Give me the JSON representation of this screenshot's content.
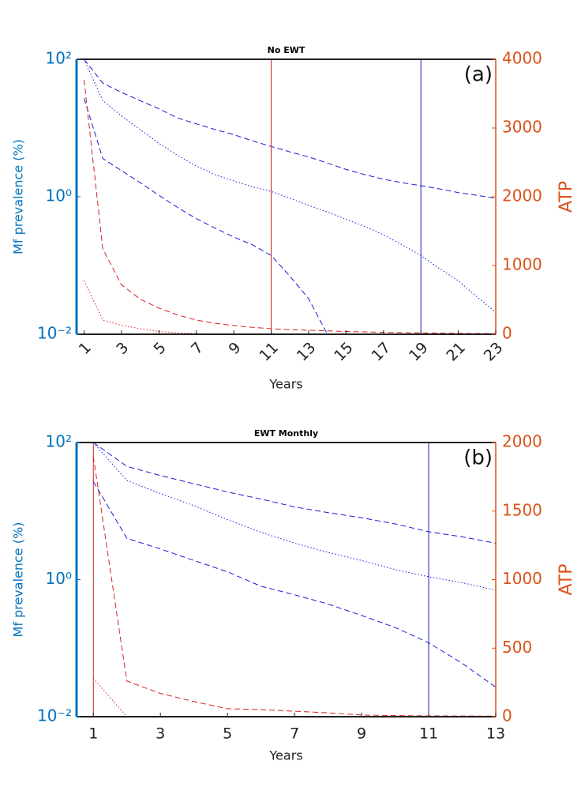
{
  "chart_data": [
    {
      "type": "line",
      "title": "No EWT",
      "panel_label": "(a)",
      "xlabel": "Years",
      "ylabel": "Mf prevalence (%)",
      "y2label": "ATP",
      "x": [
        1,
        2,
        3,
        4,
        5,
        6,
        7,
        8,
        9,
        10,
        11,
        12,
        13,
        14,
        15,
        16,
        17,
        18,
        19,
        20,
        21,
        22,
        23
      ],
      "xlim": [
        0.6,
        23
      ],
      "xticks": [
        1,
        3,
        5,
        7,
        9,
        11,
        13,
        15,
        17,
        19,
        21,
        23
      ],
      "xtick_rotation": 45,
      "ylog": true,
      "ylim": [
        0.01,
        100
      ],
      "yticks": [
        {
          "value": 0.01,
          "label": "10⁻²"
        },
        {
          "value": 1,
          "label": "10⁰"
        },
        {
          "value": 100,
          "label": "10²"
        }
      ],
      "y2lim": [
        0,
        4000
      ],
      "y2ticks": [
        0,
        1000,
        2000,
        3000,
        4000
      ],
      "ycolor": "#0072bd",
      "y2color": "#d95319",
      "series": [
        {
          "color": "#1a1ad6",
          "linestyle": "dashed",
          "values": [
            100,
            45,
            33,
            25,
            19,
            14,
            11.5,
            9.5,
            8,
            6.5,
            5.4,
            4.5,
            3.8,
            3.1,
            2.5,
            2.1,
            1.8,
            1.6,
            1.45,
            1.3,
            1.15,
            1.05,
            0.95
          ]
        },
        {
          "color": "#1a1ad6",
          "linestyle": "dotted",
          "values": [
            100,
            25,
            15,
            9.5,
            6,
            4,
            2.8,
            2.1,
            1.7,
            1.4,
            1.2,
            0.95,
            0.75,
            0.6,
            0.47,
            0.37,
            0.28,
            0.2,
            0.14,
            0.09,
            0.06,
            0.035,
            0.021
          ]
        },
        {
          "color": "#1a1ad6",
          "linestyle": "dashed",
          "values": [
            27,
            3.6,
            2.4,
            1.6,
            1.05,
            0.7,
            0.48,
            0.35,
            0.26,
            0.2,
            0.14,
            0.07,
            0.033,
            0.01,
            0.01,
            0.01,
            0.01,
            0.01,
            0.01,
            0.01,
            0.01,
            0.01,
            0.01
          ]
        },
        {
          "color": "#d62020",
          "linestyle": "dashed",
          "axis": "y2",
          "values": [
            3700,
            1240,
            720,
            510,
            380,
            280,
            207,
            160,
            126,
            100,
            80,
            67,
            57,
            48,
            40,
            34,
            28,
            24,
            20,
            17,
            14,
            12,
            10
          ]
        },
        {
          "color": "#d62020",
          "linestyle": "dotted",
          "axis": "y2",
          "values": [
            780,
            207,
            130,
            80,
            40,
            20,
            10,
            5,
            3,
            2,
            1,
            0,
            0,
            0,
            0,
            0,
            0,
            0,
            0,
            0,
            0,
            0,
            0
          ]
        }
      ],
      "vlines": [
        {
          "x": 11,
          "color": "#d62020"
        },
        {
          "x": 19,
          "color": "#1a1ad6"
        }
      ]
    },
    {
      "type": "line",
      "title": "EWT Monthly",
      "panel_label": "(b)",
      "xlabel": "Years",
      "ylabel": "Mf prevalence (%)",
      "y2label": "ATP",
      "x": [
        1,
        2,
        3,
        4,
        5,
        6,
        7,
        8,
        9,
        10,
        11,
        12,
        13
      ],
      "xlim": [
        0.5,
        13
      ],
      "xticks": [
        1,
        3,
        5,
        7,
        9,
        11,
        13
      ],
      "ylog": true,
      "ylim": [
        0.01,
        100
      ],
      "yticks": [
        {
          "value": 0.01,
          "label": "10⁻²"
        },
        {
          "value": 1,
          "label": "10⁰"
        },
        {
          "value": 100,
          "label": "10²"
        }
      ],
      "y2lim": [
        0,
        2000
      ],
      "y2ticks": [
        0,
        500,
        1000,
        1500,
        2000
      ],
      "ycolor": "#0072bd",
      "y2color": "#d95319",
      "series": [
        {
          "color": "#1a1ad6",
          "linestyle": "dashed",
          "values": [
            100,
            45,
            33,
            25,
            19,
            15,
            11.5,
            9.5,
            8,
            6.5,
            5,
            4.2,
            3.4
          ]
        },
        {
          "color": "#1a1ad6",
          "linestyle": "dotted",
          "values": [
            100,
            28,
            18,
            12,
            7.5,
            4.9,
            3.4,
            2.5,
            1.9,
            1.4,
            1.1,
            0.9,
            0.7
          ]
        },
        {
          "color": "#1a1ad6",
          "linestyle": "dashed",
          "values": [
            27,
            4,
            2.8,
            1.9,
            1.3,
            0.8,
            0.6,
            0.44,
            0.3,
            0.2,
            0.12,
            0.06,
            0.027
          ]
        },
        {
          "color": "#d62020",
          "linestyle": "dashed",
          "axis": "y2",
          "values": [
            1900,
            260,
            170,
            110,
            58,
            52,
            40,
            28,
            12,
            8,
            6,
            5,
            4
          ]
        },
        {
          "color": "#d62020",
          "linestyle": "dotted",
          "axis": "y2",
          "values": [
            280,
            0,
            0,
            0,
            0,
            0,
            0,
            0,
            0,
            0,
            0,
            0,
            0
          ]
        }
      ],
      "vlines": [
        {
          "x": 1,
          "color": "#d62020"
        },
        {
          "x": 11,
          "color": "#1a1ad6"
        }
      ]
    }
  ]
}
